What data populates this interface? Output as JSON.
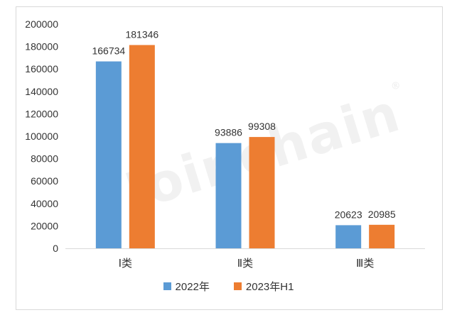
{
  "watermark": {
    "text": "Joinchain",
    "mark": "®"
  },
  "chart_data": {
    "type": "bar",
    "categories": [
      "Ⅰ类",
      "Ⅱ类",
      "Ⅲ类"
    ],
    "series": [
      {
        "name": "2022年",
        "values": [
          166734,
          93886,
          20623
        ],
        "color": "#5B9BD5"
      },
      {
        "name": "2023年H1",
        "values": [
          181346,
          99308,
          20985
        ],
        "color": "#ED7D31"
      }
    ],
    "ylim": [
      0,
      200000
    ],
    "yticks": [
      0,
      20000,
      40000,
      60000,
      80000,
      100000,
      120000,
      140000,
      160000,
      180000,
      200000
    ],
    "grid": false,
    "legend_position": "bottom",
    "data_labels": true
  }
}
